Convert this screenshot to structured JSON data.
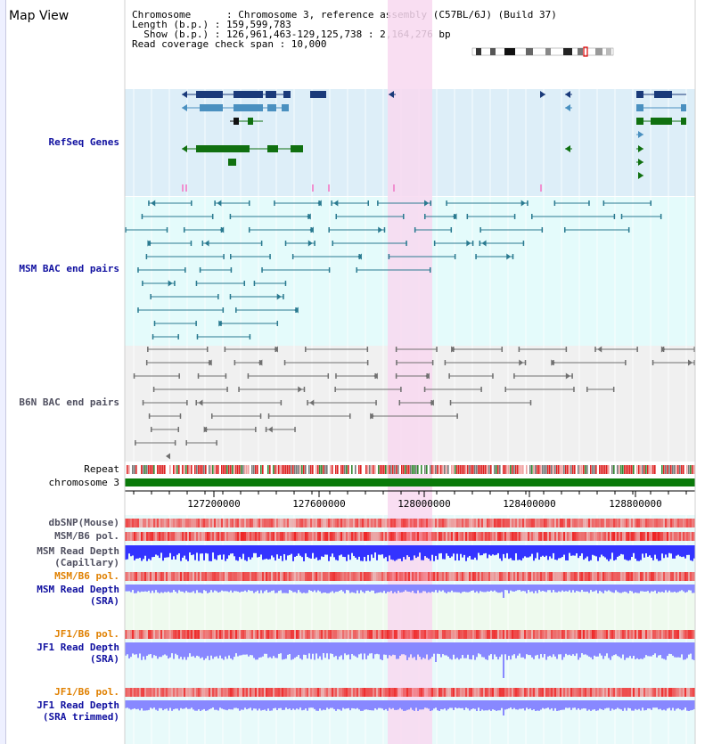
{
  "title": "Map View",
  "info": {
    "line1": "Chromosome      : Chromosome 3, reference assembly (C57BL/6J) (Build 37)",
    "line2": "Length (b.p.) : 159,599,783",
    "line3": "  Show (b.p.) : 126,961,463-129,125,738 : 2,164,276 bp",
    "line4": "Read coverage check span : 10,000"
  },
  "tracks": {
    "refseq": "RefSeq Genes",
    "msm_bac": "MSM BAC end pairs",
    "b6n_bac": "B6N BAC end pairs",
    "repeat": "Repeat",
    "chromosome": "chromosome 3",
    "dbsnp": "dbSNP(Mouse)",
    "msm_b6_pol": "MSM/B6 pol.",
    "msm_depth_cap_1": "MSM Read Depth",
    "msm_depth_cap_2": "(Capillary)",
    "msm_b6_pol2": "MSM/B6 pol.",
    "msm_depth_sra_1": "MSM Read Depth",
    "msm_depth_sra_2": "(SRA)",
    "jf1_b6_pol": "JF1/B6 pol.",
    "jf1_depth_1": "JF1 Read Depth",
    "jf1_depth_2": "(SRA)",
    "jf1_b6_pol2": "JF1/B6 pol.",
    "jf1_trim_1": "JF1 Read Depth",
    "jf1_trim_2": "(SRA trimmed)"
  },
  "axis_ticks": [
    "127200000",
    "127600000",
    "128000000",
    "128400000",
    "128800000"
  ],
  "colors": {
    "refseq_bg": "#ddeef8",
    "msm_bac_bg": "#e4fbfb",
    "b6n_bac_bg": "#f0f0f0",
    "highlight": "#f8d8f0",
    "gene_dark": "#1a3a7a",
    "gene_mid": "#4a90c0",
    "gene_green": "#107010",
    "bac_msm": "#2a7a90",
    "bac_b6n": "#707070",
    "chrom_bar": "#0a7a0a",
    "depth_blue": "#3333ff",
    "depth_light": "#8888ff",
    "label_navy": "#1010a0",
    "label_orange": "#e08000"
  }
}
